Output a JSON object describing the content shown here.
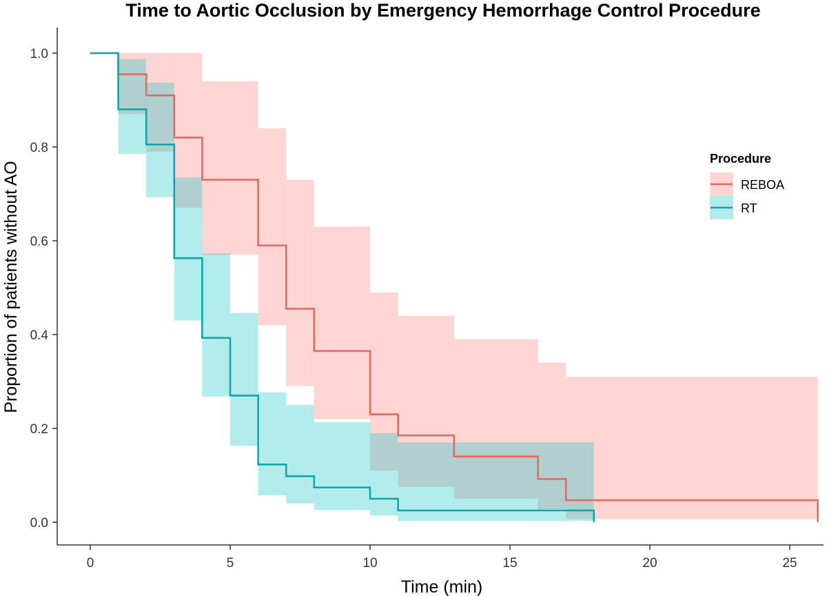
{
  "chart_data": {
    "type": "line",
    "subtype": "kaplan-meier step curve with confidence bands",
    "title": "Time to Aortic Occlusion by Emergency Hemorrhage Control Procedure",
    "xlabel": "Time (min)",
    "ylabel": "Proportion of patients without AO",
    "xlim": [
      0,
      26
    ],
    "ylim": [
      0,
      1
    ],
    "xticks": [
      0,
      5,
      10,
      15,
      20,
      25
    ],
    "xtick_labels": [
      "0",
      "5",
      "10",
      "15",
      "20",
      "25"
    ],
    "yticks": [
      0,
      0.2,
      0.4,
      0.6,
      0.8,
      1.0
    ],
    "ytick_labels": [
      "0.0",
      "0.2",
      "0.4",
      "0.6",
      "0.8",
      "1.0"
    ],
    "grid": false,
    "legend": {
      "title": "Procedure",
      "position": "right",
      "entries": [
        "REBOA",
        "RT"
      ]
    },
    "series": [
      {
        "name": "REBOA",
        "color": "#E06C5F",
        "band_color": "#F8766D",
        "x": [
          0,
          1,
          2,
          3,
          4,
          6,
          7,
          8,
          10,
          11,
          13,
          16,
          17,
          26
        ],
        "y": [
          1.0,
          0.955,
          0.91,
          0.82,
          0.73,
          0.59,
          0.455,
          0.365,
          0.23,
          0.185,
          0.14,
          0.092,
          0.047,
          0.0
        ],
        "lower": [
          1.0,
          0.87,
          0.79,
          0.67,
          0.57,
          0.42,
          0.29,
          0.22,
          0.11,
          0.075,
          0.05,
          0.028,
          0.007,
          0.007
        ],
        "upper": [
          1.0,
          1.0,
          1.0,
          1.0,
          0.94,
          0.84,
          0.73,
          0.63,
          0.49,
          0.44,
          0.39,
          0.34,
          0.31,
          0.31
        ]
      },
      {
        "name": "RT",
        "color": "#10A5A9",
        "band_color": "#00BFC4",
        "x": [
          0,
          1,
          2,
          3,
          4,
          5,
          6,
          7,
          8,
          10,
          11,
          18
        ],
        "y": [
          1.0,
          0.88,
          0.805,
          0.563,
          0.393,
          0.27,
          0.123,
          0.098,
          0.074,
          0.05,
          0.025,
          0.0
        ],
        "lower": [
          1.0,
          0.785,
          0.693,
          0.43,
          0.268,
          0.163,
          0.057,
          0.04,
          0.026,
          0.014,
          0.003,
          0.003
        ],
        "upper": [
          1.0,
          0.987,
          0.937,
          0.735,
          0.573,
          0.446,
          0.277,
          0.25,
          0.213,
          0.19,
          0.17,
          0.17
        ]
      }
    ]
  }
}
